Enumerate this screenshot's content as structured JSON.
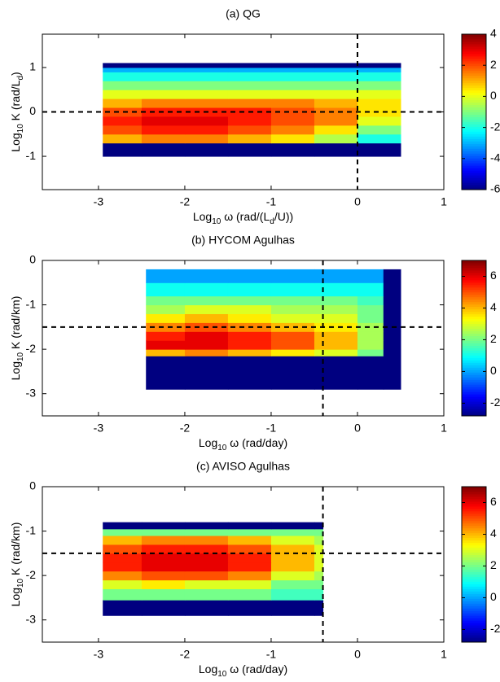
{
  "chart_data": [
    {
      "type": "heatmap",
      "title": "(a) QG",
      "xlabel": [
        "Log",
        "10",
        " ω (rad/(L",
        "d",
        "/U))"
      ],
      "ylabel": [
        "Log",
        "10",
        " K (rad/L",
        "d",
        ")"
      ],
      "xlim": [
        -3.65,
        1
      ],
      "xticks": [
        -3,
        -2,
        -1,
        0,
        1
      ],
      "ylim": [
        -1.75,
        1.75
      ],
      "yticks": [
        -1,
        0,
        1
      ],
      "x": [
        -2.95,
        -2.5,
        -2,
        -1.5,
        -1,
        -0.5,
        0,
        0.5
      ],
      "y": [
        -1,
        -0.7,
        -0.5,
        -0.3,
        -0.1,
        0.1,
        0.3,
        0.5,
        0.7,
        0.9,
        1.0,
        1.1
      ],
      "values": [
        [
          -6,
          -6,
          -6,
          -6,
          -6,
          -6,
          -6
        ],
        [
          1,
          1.5,
          1.5,
          1,
          0.5,
          -0.5,
          -2
        ],
        [
          2,
          2.5,
          2.5,
          2,
          1.5,
          0.5,
          -1
        ],
        [
          2.5,
          3,
          3,
          2.5,
          2,
          1.5,
          0
        ],
        [
          2,
          2.5,
          2.5,
          2.5,
          2,
          1.5,
          0.5
        ],
        [
          1,
          1.5,
          1.5,
          1.5,
          1.5,
          1,
          0.5
        ],
        [
          0,
          0,
          0,
          0,
          0,
          0,
          0
        ],
        [
          -1,
          -1,
          -1,
          -1,
          -1,
          -1,
          -1
        ],
        [
          -2,
          -2,
          -2,
          -2,
          -2,
          -2,
          -2
        ],
        [
          -3,
          -3,
          -3,
          -3,
          -3,
          -3,
          -3
        ],
        [
          -6,
          -6,
          -6,
          -6,
          -6,
          -6,
          -6
        ]
      ],
      "clim": [
        -6,
        4
      ],
      "cticks": [
        -6,
        -4,
        -2,
        0,
        2,
        4
      ],
      "ref_x": 0,
      "ref_y": 0
    },
    {
      "type": "heatmap",
      "title": "(b) HYCOM Agulhas",
      "xlabel": [
        "Log",
        "10",
        " ω (rad/day)"
      ],
      "ylabel": [
        "Log",
        "10",
        " K (rad/km)"
      ],
      "xlim": [
        -3.65,
        1
      ],
      "xticks": [
        -3,
        -2,
        -1,
        0,
        1
      ],
      "ylim": [
        -3.5,
        0
      ],
      "yticks": [
        -3,
        -2,
        -1,
        0
      ],
      "x": [
        -2.45,
        -2,
        -1.5,
        -1,
        -0.5,
        0,
        0.3,
        0.5
      ],
      "y": [
        -2.9,
        -2.15,
        -2,
        -1.8,
        -1.6,
        -1.4,
        -1.2,
        -1,
        -0.8,
        -0.5,
        -0.2
      ],
      "values": [
        [
          -3,
          -3,
          -3,
          -3,
          -3,
          -3,
          -3
        ],
        [
          4,
          4.5,
          4,
          3.5,
          3,
          2,
          -3
        ],
        [
          6,
          6,
          5.5,
          5,
          4,
          2.5,
          -3
        ],
        [
          5.5,
          6,
          5.5,
          5,
          4,
          2.5,
          -3
        ],
        [
          4.5,
          5,
          4.5,
          4,
          3.5,
          2.5,
          -3
        ],
        [
          3.5,
          4,
          3.5,
          3,
          3,
          2,
          -3
        ],
        [
          2.5,
          3,
          3,
          2.5,
          2.5,
          2,
          -3
        ],
        [
          2,
          2,
          2,
          2,
          2,
          1.5,
          -3
        ],
        [
          1,
          1,
          1,
          1,
          1,
          1,
          -3
        ],
        [
          0,
          0,
          0,
          0,
          0,
          0,
          -3
        ]
      ],
      "clim": [
        -2.8,
        7
      ],
      "cticks": [
        -2,
        0,
        2,
        4,
        6
      ],
      "ref_x": -0.4,
      "ref_y": -1.5
    },
    {
      "type": "heatmap",
      "title": "(c) AVISO Agulhas",
      "xlabel": [
        "Log",
        "10",
        " ω (rad/day)"
      ],
      "ylabel": [
        "Log",
        "10",
        " K (rad/km)"
      ],
      "xlim": [
        -3.65,
        1
      ],
      "xticks": [
        -3,
        -2,
        -1,
        0,
        1
      ],
      "ylim": [
        -3.5,
        0
      ],
      "yticks": [
        -3,
        -2,
        -1,
        0
      ],
      "x": [
        -2.95,
        -2.5,
        -2,
        -1.5,
        -1,
        -0.5,
        -0.4
      ],
      "y": [
        -2.9,
        -2.55,
        -2.3,
        -2.1,
        -1.9,
        -1.7,
        -1.5,
        -1.3,
        -1.1,
        -0.95,
        -0.8
      ],
      "values": [
        [
          -3,
          -3,
          -3,
          -3,
          -3,
          -3
        ],
        [
          2,
          2,
          2,
          2,
          1.5,
          1.5
        ],
        [
          3,
          3.5,
          3,
          3,
          2,
          2
        ],
        [
          4.5,
          5,
          5,
          4.5,
          3,
          2.5
        ],
        [
          5.5,
          6,
          6,
          5.5,
          4,
          3
        ],
        [
          5.5,
          6,
          6,
          5.5,
          4,
          3
        ],
        [
          5,
          5.5,
          5.5,
          5,
          4,
          3
        ],
        [
          4,
          4.5,
          4.5,
          4,
          3,
          2.5
        ],
        [
          2,
          2,
          2,
          2,
          2,
          2
        ],
        [
          -3,
          -3,
          -3,
          -3,
          -3,
          -3
        ]
      ],
      "clim": [
        -2.8,
        7
      ],
      "cticks": [
        -2,
        0,
        2,
        4,
        6
      ],
      "ref_x": -0.4,
      "ref_y": -1.5
    }
  ]
}
